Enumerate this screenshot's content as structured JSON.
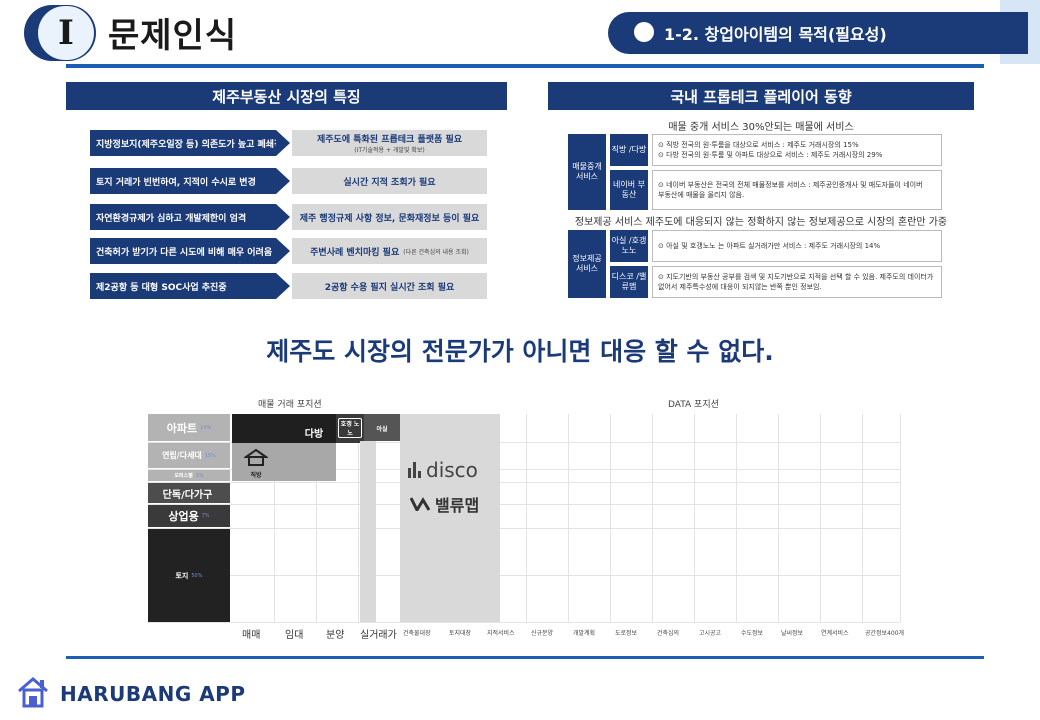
{
  "header": {
    "section_numeral": "I",
    "section_title": "문제인식",
    "subtitle": "1-2. 창업아이템의 목적(필요성)"
  },
  "left_panel": {
    "title": "제주부동산 시장의 특징",
    "rows": [
      {
        "issue": "지방정보지(제주오일장 등) 의존도가 높고 폐쇄적",
        "need": "제주도에 특화된 프롭테크 플랫폼 필요",
        "note": "(IT기술적용 + 개발및 확보)"
      },
      {
        "issue": "토지 거래가 빈번하여, 지적이 수시로 변경",
        "need": "실시간 지적 조회가 필요"
      },
      {
        "issue": "자연환경규제가 심하고 개발제한이 엄격",
        "need": "제주 행정규제 사항 정보, 문화재정보 등이 필요"
      },
      {
        "issue": "건축허가 받기가 다른 시도에 비해 매우 어려움",
        "need": "주변사례 벤치마킹 필요",
        "note": "(다른 건축심의 내용 조회)"
      },
      {
        "issue": "제2공항 등 대형 SOC사업 추진중",
        "need": "2공항 수용 필지 실시간 조회 필요"
      }
    ]
  },
  "right_panel": {
    "title": "국내 프롭테크 플레이어 동향",
    "brokerage": {
      "heading": "매물 중개 서비스  30%안되는 매물에 서비스",
      "category": "매물중개 서비스",
      "players": [
        {
          "name": "직방 /다방",
          "lines": [
            "⊙ 직방 전국의 원·투룸을 대상으로 서비스 :  제주도 거래시장의 15%",
            "⊙ 다방 전국의 원·투룸 및 아파트 대상으로 서비스 :  제주도 거래시장의 29%"
          ]
        },
        {
          "name": "네이버 부동산",
          "lines": [
            "⊙ 네이버 부동산은 전국의 전체 매물정보를 서비스 : 제주공인중개사 및 매도자들이 네이버",
            "   부동산에 매물을 올리지 않음."
          ]
        }
      ]
    },
    "information": {
      "heading": "정보제공 서비스 제주도에 대응되지 않는 정확하지 않는 정보제공으로 시장의 혼란만 가중",
      "category": "정보제공 서비스",
      "players": [
        {
          "name": "아실 /호갱노노",
          "lines": [
            "⊙ 아실 및 호갱노노 는 아파트 실거래가만 서비스 : 제주도 거래시장의 14%"
          ]
        },
        {
          "name": "디스코 /밸류맵",
          "lines": [
            "⊙ 지도기반의 부동산 공부를 검색 및 지도기반으로 지적을 선택 할 수 있음.  제주도의 데이터가",
            "   없어서 제주특수성에 대응이 되지않는 반쪽 뿐인 정보임."
          ]
        }
      ]
    }
  },
  "headline": "제주도 시장의 전문가가 아니면 대응 할 수 없다.",
  "chart_data": {
    "type": "table",
    "group_labels": {
      "trade": "매물 거래 포지션",
      "data": "DATA 포지션"
    },
    "y_categories": [
      {
        "label": "아파트",
        "pct": "14%"
      },
      {
        "label": "연립/다세대",
        "pct": "15%"
      },
      {
        "label": "오피스텔",
        "pct": "1%"
      },
      {
        "label": "단독/다가구",
        "pct": ""
      },
      {
        "label": "상업용",
        "pct": "7%"
      },
      {
        "label": "토지",
        "pct": "50%"
      }
    ],
    "x_trade": [
      "매매",
      "임대",
      "분양",
      "실거래가"
    ],
    "x_data": [
      "건축물대장",
      "토지대장",
      "지적서비스",
      "신규분양",
      "개발계획",
      "도로정보",
      "건축심의",
      "고시공고",
      "수도정보",
      "날씨정보",
      "연계서비스",
      "공간정보400개"
    ],
    "players": {
      "dabang": "다방",
      "jikbang": "직방",
      "hogang": "호갱 노노",
      "asil": "아실",
      "disco": "disco",
      "valuemap": "밸류맵"
    },
    "colors": {
      "navy": "#1a3a78",
      "dark": "#222222",
      "gray": "#b3b3b3"
    }
  },
  "footer": {
    "brand": "HARUBANG APP"
  }
}
